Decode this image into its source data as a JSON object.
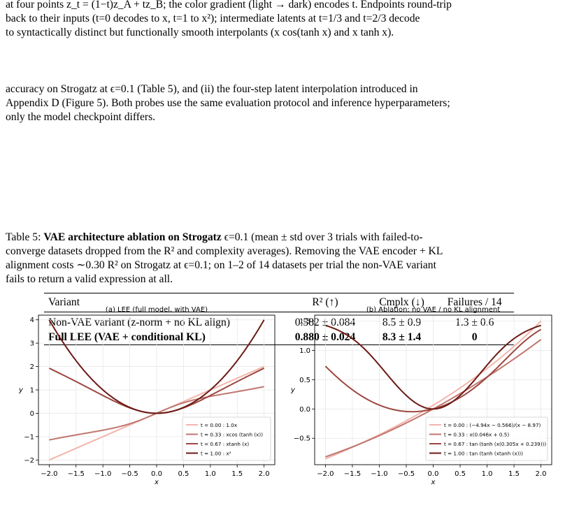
{
  "intro": {
    "lines": [
      "at four points z_t = (1−t)z_A + tz_B; the color gradient (light → dark) encodes t. Endpoints round-trip",
      "back to their inputs (t=0 decodes to x, t=1 to x²); intermediate latents at t=1/3 and t=2/3 decode",
      "to syntactically distinct but functionally smooth interpolants (x cos(tanh x) and x tanh x)."
    ]
  },
  "body": {
    "lines": [
      "accuracy on Strogatz at ϵ=0.1 (Table 5), and (ii) the four-step latent interpolation introduced in",
      "Appendix D (Figure 5). Both probes use the same evaluation protocol and inference hyperparameters;",
      "only the model checkpoint differs."
    ]
  },
  "table_caption": {
    "label": "Table 5:",
    "bold": "VAE architecture ablation on Strogatz",
    "rest_lines": [
      " ϵ=0.1 (mean ± std over 3 trials with failed-to-",
      "converge datasets dropped from the R² and complexity averages). Removing the VAE encoder + KL",
      "alignment costs ∼0.30 R² on Strogatz at ϵ=0.1; on 1–2 of 14 datasets per trial the non-VAE variant",
      "fails to return a valid expression at all."
    ]
  },
  "table": {
    "headers": [
      "Variant",
      "R² (↑)",
      "Cmplx (↓)",
      "Failures / 14"
    ],
    "rows": [
      {
        "variant": "Non-VAE variant (z-norm + no KL align)",
        "r2": "0.582 ± 0.084",
        "cmplx": "8.5 ± 0.9",
        "failures": "1.3 ± 0.6",
        "bold": false
      },
      {
        "variant": "Full LEE (VAE + conditional KL)",
        "r2": "0.880 ± 0.024",
        "cmplx": "8.3 ± 1.4",
        "failures": "0",
        "bold": true
      }
    ]
  },
  "chart_data": [
    {
      "type": "line",
      "title": "(a) LEE (full model, with VAE)",
      "xlabel": "x",
      "ylabel": "y",
      "xlim": [
        -2.2,
        2.2
      ],
      "ylim": [
        -2.2,
        4.2
      ],
      "xticks": [
        "−2.0",
        "−1.5",
        "−1.0",
        "−0.5",
        "0.0",
        "0.5",
        "1.0",
        "1.5",
        "2.0"
      ],
      "xtick_values": [
        -2.0,
        -1.5,
        -1.0,
        -0.5,
        0.0,
        0.5,
        1.0,
        1.5,
        2.0
      ],
      "yticks": [
        "−2",
        "−1",
        "0",
        "1",
        "2",
        "3",
        "4"
      ],
      "ytick_values": [
        -2,
        -1,
        0,
        1,
        2,
        3,
        4
      ],
      "grid": true,
      "legend_position": "lower-right",
      "series": [
        {
          "name": "t = 0.00 : 1.0x",
          "func": "linear",
          "color": "#f2b5ab"
        },
        {
          "name": "t = 0.33 : xcos (tanh (x))",
          "func": "xcostanh",
          "color": "#c0766f"
        },
        {
          "name": "t = 0.67 : xtanh (x)",
          "func": "xtanh",
          "color": "#9c4740"
        },
        {
          "name": "t = 1.00 : x²",
          "func": "square",
          "color": "#6b1a15"
        }
      ]
    },
    {
      "type": "line",
      "title": "(b) Ablation: no VAE / no KL alignment",
      "xlabel": "x",
      "ylabel": "y",
      "xlim": [
        -2.2,
        2.2
      ],
      "ylim": [
        -0.95,
        1.6
      ],
      "xticks": [
        "−2.0",
        "−1.5",
        "−1.0",
        "−0.5",
        "0.0",
        "0.5",
        "1.0",
        "1.5",
        "2.0"
      ],
      "xtick_values": [
        -2.0,
        -1.5,
        -1.0,
        -0.5,
        0.0,
        0.5,
        1.0,
        1.5,
        2.0
      ],
      "yticks": [
        "−0.5",
        "0.0",
        "0.5",
        "1.0",
        "1.5"
      ],
      "ytick_values": [
        -0.5,
        0.0,
        0.5,
        1.0,
        1.5
      ],
      "grid": true,
      "legend_position": "lower-right",
      "series": [
        {
          "name": "t = 0.00 : (−4.94x − 0.566)/(x − 8.97)",
          "func": "rational",
          "color": "#f2b5ab"
        },
        {
          "name": "t = 0.33 : x(0.046x + 0.5)",
          "func": "quad",
          "color": "#c0766f"
        },
        {
          "name": "t = 0.67 : tan (tanh (x(0.305x + 0.239)))",
          "func": "tantanhquad",
          "color": "#9c4740"
        },
        {
          "name": "t = 1.00 : tan (tanh (xtanh (x)))",
          "func": "tantanhxtanh",
          "color": "#6b1a15"
        }
      ]
    }
  ]
}
